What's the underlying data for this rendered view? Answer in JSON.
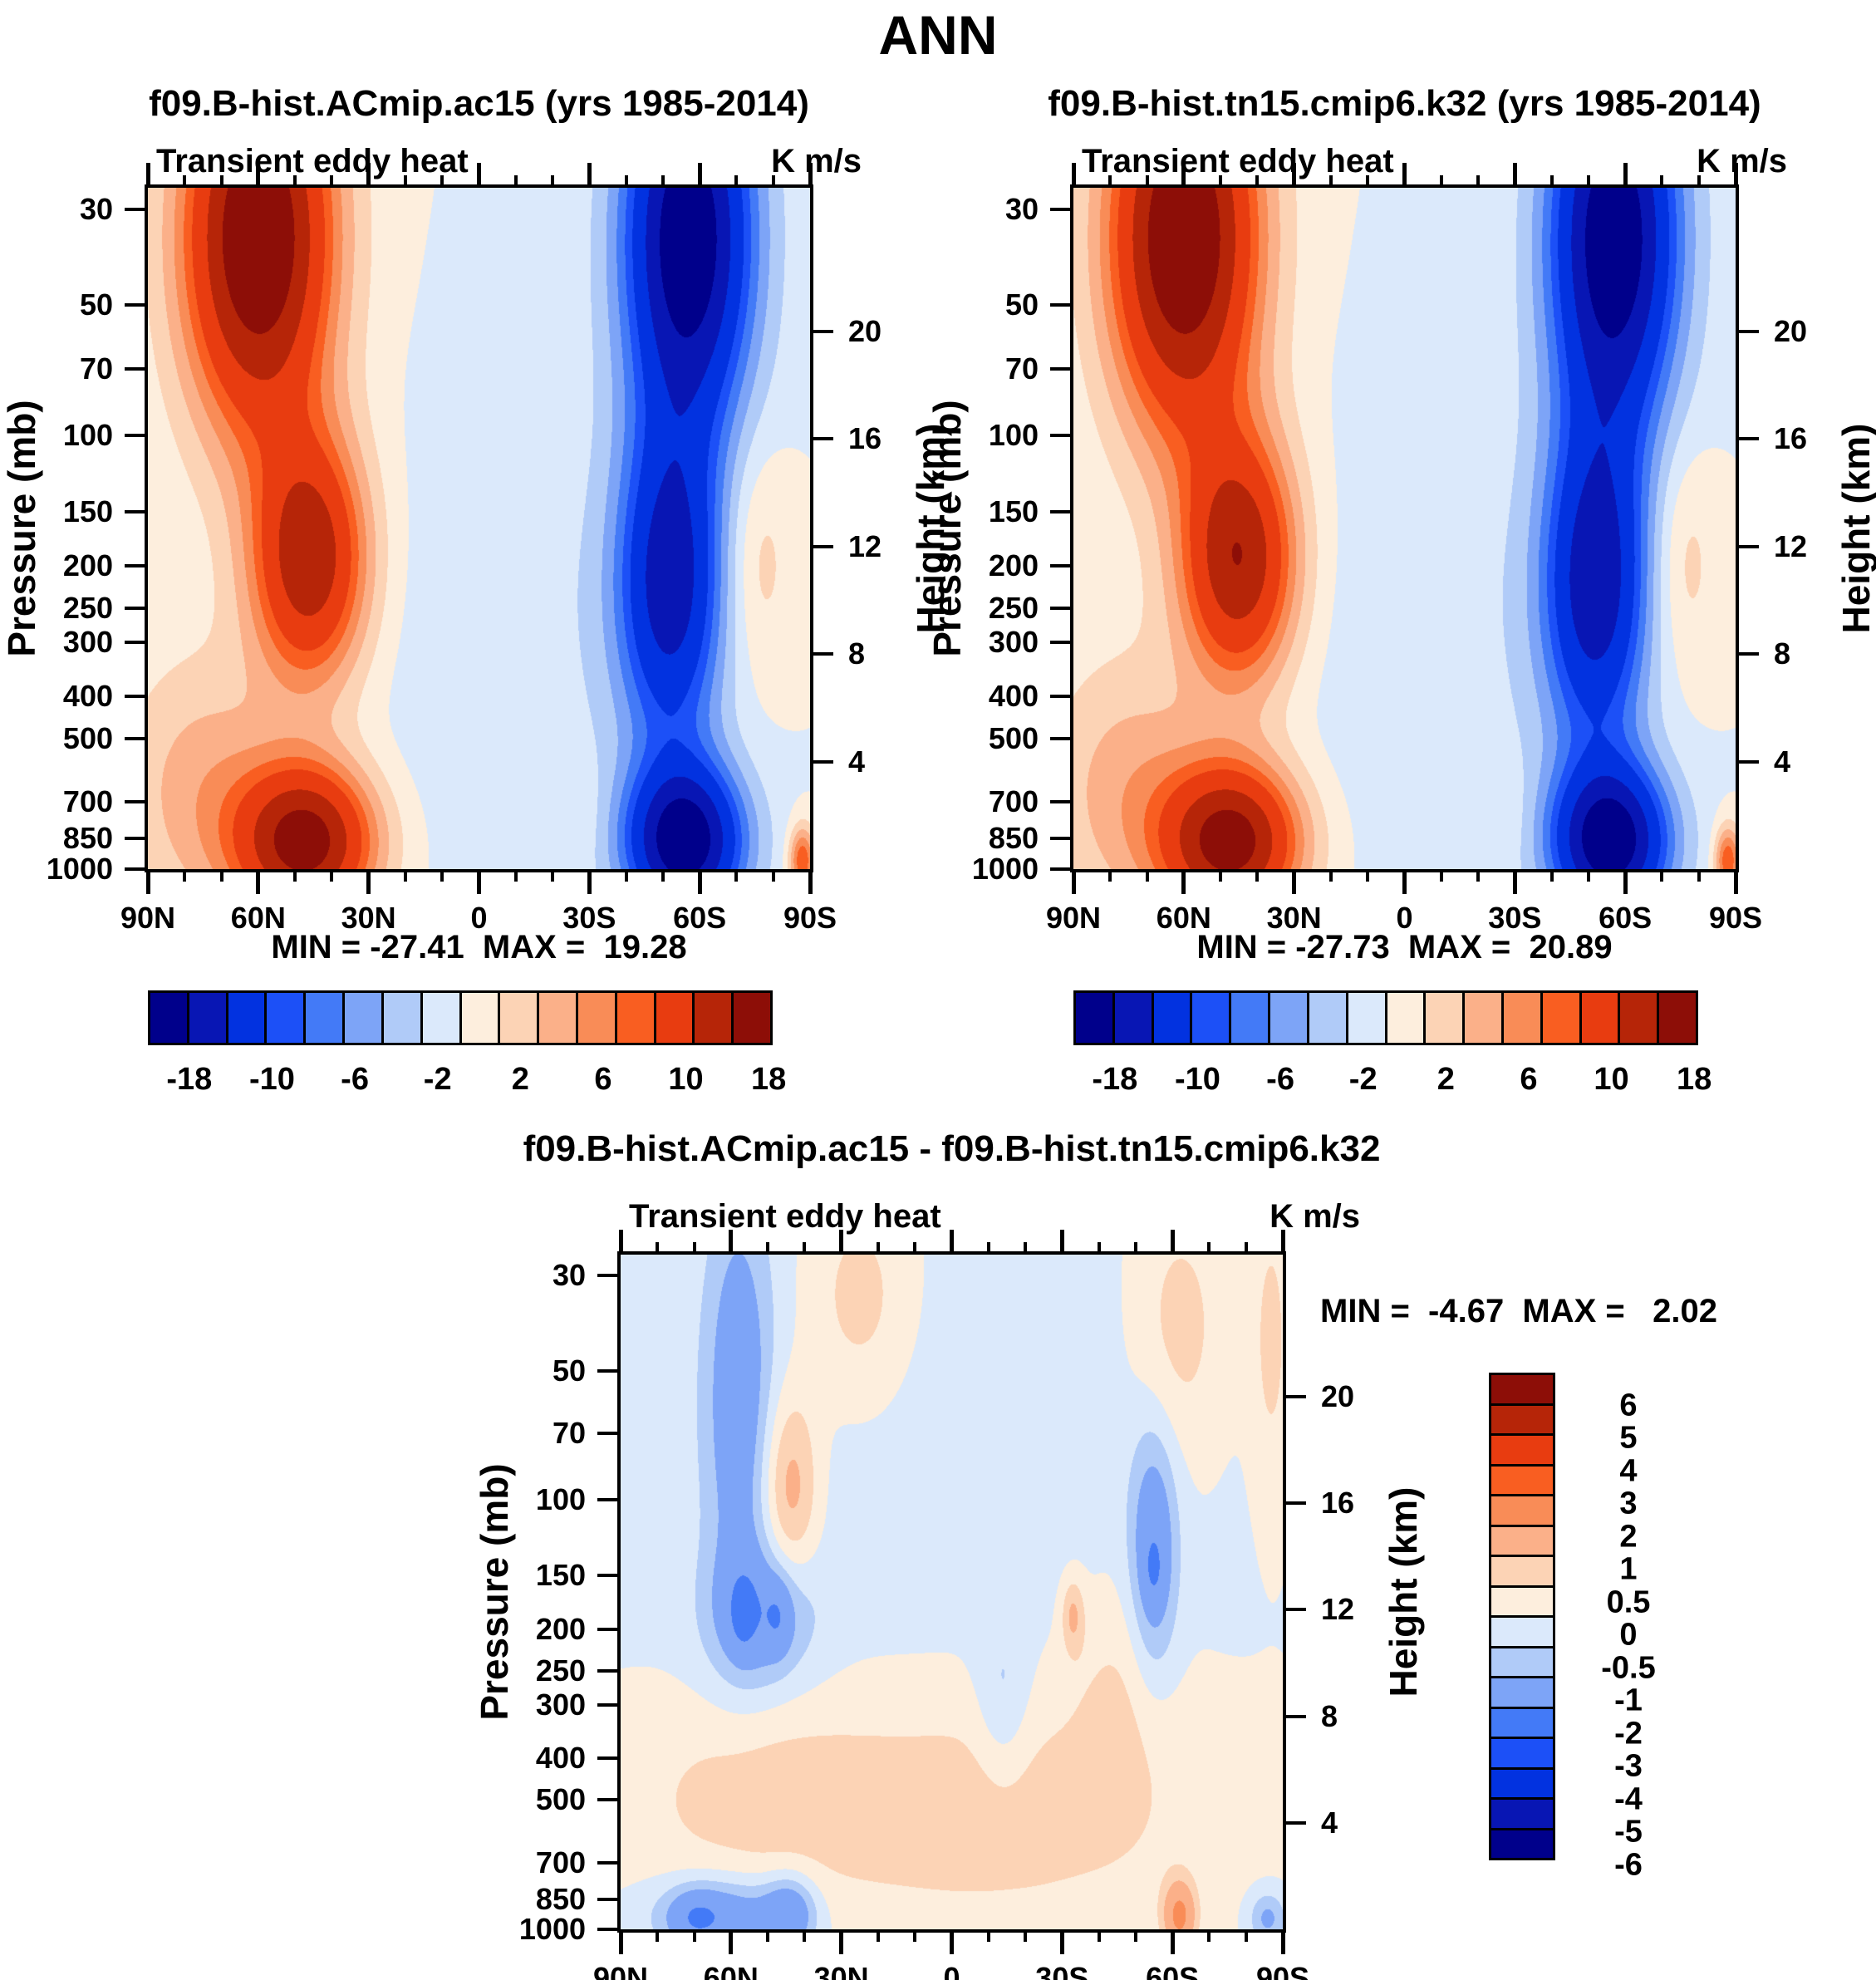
{
  "title": "ANN",
  "colors": {
    "text": "#000000",
    "background": "#ffffff",
    "frame": "#000000",
    "terrain_mask": "#ffffff",
    "palette_16_neg_to_pos": [
      "#00008b",
      "#0816b4",
      "#0232e0",
      "#1c50f7",
      "#437af7",
      "#7da4f7",
      "#b0cbf8",
      "#dbe9fb",
      "#fdeedd",
      "#fcd3b5",
      "#fbb089",
      "#f98c57",
      "#f95e21",
      "#e83c10",
      "#b62508",
      "#8d0e07"
    ]
  },
  "axes": {
    "pressure_label": "Pressure (mb)",
    "height_label": "Height (km)",
    "pressure_ticks_mb": [
      30,
      50,
      70,
      100,
      150,
      200,
      250,
      300,
      400,
      500,
      700,
      850,
      1000
    ],
    "height_ticks_km": [
      20,
      16,
      12,
      8,
      4
    ],
    "lat_tick_labels": [
      "90N",
      "60N",
      "30N",
      "0",
      "30S",
      "60S",
      "90S"
    ],
    "lat_tick_values": [
      90,
      60,
      30,
      0,
      -30,
      -60,
      -90
    ],
    "lat_minor_step_deg": 10,
    "pressure_axis_top_mb": 26.8,
    "pressure_axis_bottom_mb": 1000,
    "scale_height_km": 7
  },
  "panels": [
    {
      "id": "top-left",
      "title": "f09.B-hist.ACmip.ac15 (yrs 1985-2014)",
      "field_label": "Transient eddy heat",
      "units": "K m/s",
      "minmax_text": "MIN = -27.41  MAX =  19.28"
    },
    {
      "id": "top-right",
      "title": "f09.B-hist.tn15.cmip6.k32 (yrs 1985-2014)",
      "field_label": "Transient eddy heat",
      "units": "K m/s",
      "minmax_text": "MIN = -27.73  MAX =  20.89"
    },
    {
      "id": "difference",
      "title": "f09.B-hist.ACmip.ac15 - f09.B-hist.tn15.cmip6.k32",
      "field_label": "Transient eddy heat",
      "units": "K m/s",
      "minmax_text": "MIN =  -4.67  MAX =   2.02"
    }
  ],
  "colorbars": {
    "top_shared": {
      "orientation": "horizontal",
      "contour_levels": [
        -18,
        -14,
        -10,
        -8,
        -6,
        -4,
        -2,
        0,
        2,
        4,
        6,
        8,
        10,
        14,
        18
      ],
      "labeled_levels": [
        "-18",
        "-10",
        "-6",
        "-2",
        "2",
        "6",
        "10",
        "18"
      ],
      "labeled_boundary_indices": [
        1,
        3,
        5,
        7,
        9,
        11,
        13,
        15
      ]
    },
    "difference": {
      "orientation": "vertical",
      "labels_top_to_bottom": [
        "6",
        "5",
        "4",
        "3",
        "2",
        "1",
        "0.5",
        "0",
        "-0.5",
        "-1",
        "-2",
        "-3",
        "-4",
        "-5",
        "-6"
      ],
      "contour_levels": [
        -6,
        -5,
        -4,
        -3,
        -2,
        -1,
        -0.5,
        0,
        0.5,
        1,
        2,
        3,
        4,
        5,
        6
      ]
    }
  },
  "chart_data": [
    {
      "panel": "top-left",
      "type": "heatmap",
      "subtype": "filled_contour_latitude_pressure",
      "title": "f09.B-hist.ACmip.ac15 (yrs 1985-2014)",
      "variable": "Transient eddy heat",
      "units": "K m/s",
      "x_range_deg_lat": [
        90,
        -90
      ],
      "y_range_mb": [
        26.8,
        1000
      ],
      "min": -27.41,
      "max": 19.28,
      "levels": [
        -18,
        -14,
        -10,
        -8,
        -6,
        -4,
        -2,
        0,
        2,
        4,
        6,
        8,
        10,
        14,
        18
      ],
      "features": "positive (red) NH eddy heat flux peaking near 60N stratosphere, 150-200mb and 850mb; negative (blue) SH flux peaking near 55S at 200mb and 850mb; weak negative tropics; small positive patch near 76S 200mb; terrain-masked white wedge below 900mb poleward of 68S",
      "field_blobs_amp_lat_zkm_siglat_sigz": [
        [
          23,
          60,
          23.5,
          14,
          5
        ],
        [
          17,
          46,
          11.5,
          11,
          3.2
        ],
        [
          20,
          47,
          1.0,
          13,
          2.0
        ],
        [
          5,
          75,
          3.0,
          16,
          3.5
        ],
        [
          -22,
          -57,
          23.5,
          12,
          5
        ],
        [
          -16,
          -52,
          10.5,
          10,
          4.2
        ],
        [
          -21,
          -56,
          1.0,
          11,
          2.0
        ],
        [
          -1.8,
          -8,
          8,
          26,
          7
        ],
        [
          3.2,
          -76,
          11.5,
          6.5,
          3
        ],
        [
          10,
          -88,
          0.3,
          2.5,
          0.9
        ],
        [
          1.3,
          -12,
          5.5,
          7,
          2.5
        ],
        [
          1.2,
          -27,
          2.0,
          6,
          1.5
        ]
      ],
      "terrain_mask": {
        "lat_start_deg": -68,
        "slope_km_per_deg": 0.06
      }
    },
    {
      "panel": "top-right",
      "type": "heatmap",
      "subtype": "filled_contour_latitude_pressure",
      "title": "f09.B-hist.tn15.cmip6.k32 (yrs 1985-2014)",
      "variable": "Transient eddy heat",
      "units": "K m/s",
      "x_range_deg_lat": [
        90,
        -90
      ],
      "y_range_mb": [
        26.8,
        1000
      ],
      "min": -27.73,
      "max": 20.89,
      "levels": [
        -18,
        -14,
        -10,
        -8,
        -6,
        -4,
        -2,
        0,
        2,
        4,
        6,
        8,
        10,
        14,
        18
      ],
      "features": "nearly identical structure to top-left panel",
      "field_blobs_amp_lat_zkm_siglat_sigz": [
        [
          23,
          60,
          23.5,
          14,
          5
        ],
        [
          17.5,
          45,
          11.5,
          11,
          3.2
        ],
        [
          20,
          47,
          1.0,
          13,
          2.0
        ],
        [
          5,
          75,
          3.0,
          16,
          3.5
        ],
        [
          -22,
          -57,
          23.5,
          12,
          5
        ],
        [
          -16.5,
          -52,
          10.5,
          10,
          4.2
        ],
        [
          -21,
          -56,
          1.0,
          11,
          2.0
        ],
        [
          -1.8,
          -8,
          8,
          26,
          7
        ],
        [
          3.2,
          -76,
          11.5,
          6.5,
          3
        ],
        [
          10,
          -88,
          0.3,
          2.5,
          0.9
        ],
        [
          1.3,
          -12,
          5.5,
          7,
          2.5
        ],
        [
          1.2,
          -27,
          2.0,
          6,
          1.5
        ]
      ],
      "terrain_mask": {
        "lat_start_deg": -68,
        "slope_km_per_deg": 0.06
      }
    },
    {
      "panel": "difference",
      "type": "heatmap",
      "subtype": "filled_contour_latitude_pressure",
      "title": "f09.B-hist.ACmip.ac15 - f09.B-hist.tn15.cmip6.k32",
      "variable": "Transient eddy heat",
      "units": "K m/s",
      "x_range_deg_lat": [
        90,
        -90
      ],
      "y_range_mb": [
        26.8,
        1000
      ],
      "min": -4.67,
      "max": 2.02,
      "levels": [
        -6,
        -5,
        -4,
        -3,
        -2,
        -1,
        -0.5,
        0,
        0.5,
        1,
        2,
        3,
        4,
        5,
        6
      ],
      "features": "weak blue column 50-65N through depth with -2 cores near 200mb; +1 orange blob near 45N 100mb; blue wedge near 55S 70-200mb; broad faint warm lower troposphere; shallow blue near-surface band 90N-30N; small warm spot near 62S surface",
      "field_blobs_amp_lat_zkm_siglat_sigz": [
        [
          -1.4,
          58,
          20,
          6.5,
          5.5
        ],
        [
          -1.5,
          52,
          11.8,
          10,
          1.9
        ],
        [
          -0.75,
          57,
          11.8,
          2.5,
          1.0
        ],
        [
          -0.75,
          47,
          11.8,
          2.5,
          1.0
        ],
        [
          1.5,
          44,
          16.5,
          5.5,
          2.6
        ],
        [
          0.9,
          25,
          23.5,
          11,
          3.2
        ],
        [
          0.8,
          -62,
          22.5,
          9,
          3.5
        ],
        [
          0.7,
          -87,
          22,
          4,
          4
        ],
        [
          -1.7,
          -55,
          14.2,
          4.5,
          3.2
        ],
        [
          -0.6,
          -55,
          13.5,
          1.8,
          0.8
        ],
        [
          0.8,
          -10,
          4.5,
          40,
          3.2
        ],
        [
          0.6,
          55,
          5,
          25,
          2.5
        ],
        [
          -1.7,
          62,
          0.5,
          13,
          1.0
        ],
        [
          -1.5,
          44,
          0.6,
          5,
          1.0
        ],
        [
          -0.9,
          70,
          0.4,
          5,
          0.8
        ],
        [
          2.2,
          -62,
          0.5,
          3,
          0.9
        ],
        [
          -0.7,
          -14,
          8.5,
          5,
          2.2
        ],
        [
          1.1,
          -33,
          11.8,
          2.2,
          1.0
        ],
        [
          0.5,
          -45,
          9,
          9,
          3
        ],
        [
          -0.35,
          10,
          19,
          55,
          6.5
        ],
        [
          -1.2,
          -86,
          0.4,
          3.5,
          0.7
        ]
      ],
      "terrain_mask": {
        "lat_start_deg": -68,
        "slope_km_per_deg": 0.06
      }
    }
  ]
}
